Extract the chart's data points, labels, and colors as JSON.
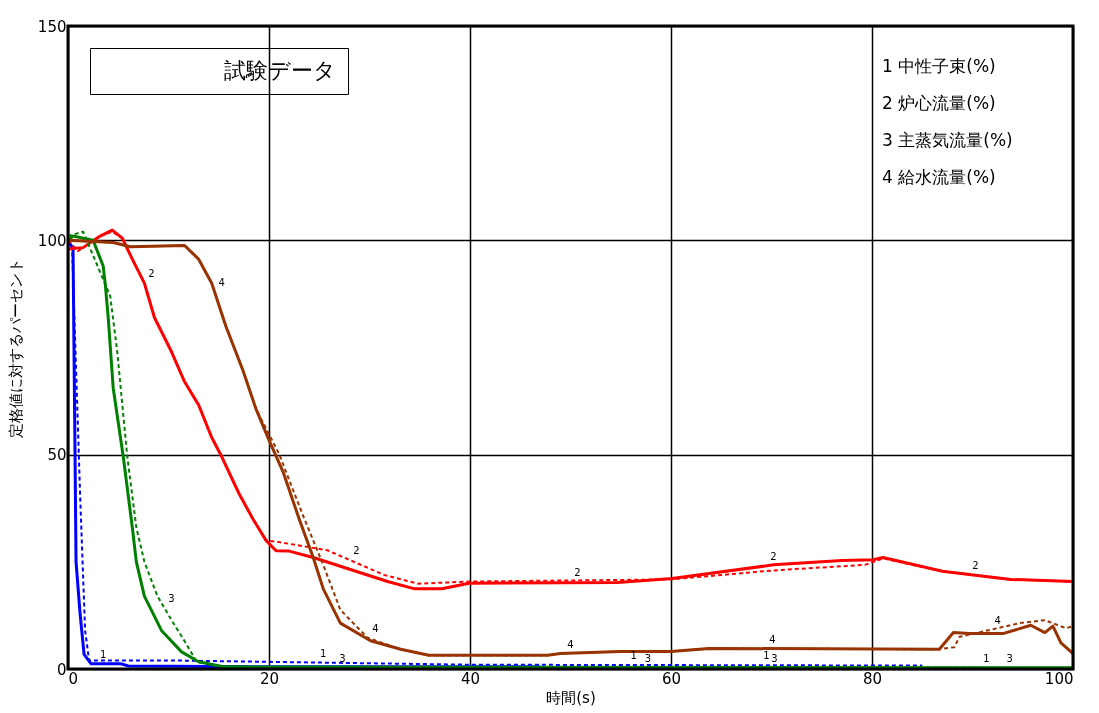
{
  "chart_data": {
    "type": "line",
    "xlabel": "時間(s)",
    "ylabel": "定格値に対するパーセント",
    "xlim": [
      0,
      100
    ],
    "xticks": [
      0,
      20,
      40,
      60,
      80,
      100
    ],
    "ylim": [
      0,
      150
    ],
    "yticks": [
      0,
      50,
      100,
      150
    ],
    "grid": true,
    "series": [
      {
        "color": "#0000ff",
        "line_style": "solid",
        "x": [
          0,
          0.5,
          0.7,
          0.8,
          1.2,
          1.6,
          2.3,
          5.3,
          6,
          20,
          47
        ],
        "values": [
          100,
          98,
          50,
          25,
          13,
          3.4,
          1.2,
          1.2,
          0.7,
          0.5,
          0.5
        ]
      },
      {
        "color": "#0000ff",
        "line_style": "dashed",
        "x": [
          0,
          0.4,
          1.2,
          1.7,
          2.1,
          10,
          40,
          85
        ],
        "values": [
          100,
          99,
          41,
          9,
          2,
          2,
          1,
          0.8
        ]
      },
      {
        "color": "#ff0000",
        "line_style": "solid",
        "x": [
          0,
          1.5,
          3.2,
          4.4,
          5.4,
          6.4,
          7.6,
          8.6,
          10.3,
          11.6,
          13,
          14.3,
          15.3,
          17,
          18.4,
          19.7,
          20.7,
          22,
          24.4,
          31.8,
          34.5,
          37.2,
          39.9,
          54.7,
          60.1,
          70.2,
          77,
          80.1,
          81.1,
          87,
          93.8,
          100
        ],
        "values": [
          98,
          98.3,
          101,
          102.4,
          100.5,
          95.6,
          90,
          82,
          74,
          67,
          61.6,
          54,
          49.5,
          41,
          35,
          30,
          27.6,
          27.5,
          26,
          20.4,
          18.7,
          18.7,
          20,
          20.2,
          21.1,
          24.3,
          25.3,
          25.5,
          26,
          22.8,
          20.9,
          20.4
        ]
      },
      {
        "color": "#ff0000",
        "line_style": "dashed",
        "x": [
          0,
          1,
          3.2,
          4.4,
          5.4,
          6.4,
          7.6,
          8.6,
          10.3,
          11.6,
          13,
          14.3,
          15.3,
          17,
          18.4,
          19.7,
          21,
          25.8,
          31.5,
          34.8,
          39.9,
          60,
          70.2,
          79.3,
          81.1,
          87,
          93.8,
          100
        ],
        "values": [
          100,
          97.5,
          101,
          102,
          100.5,
          95.6,
          90,
          82,
          74,
          67,
          61.6,
          54,
          49.5,
          41,
          35,
          30,
          29.6,
          27.7,
          21.9,
          19.9,
          20.4,
          20.9,
          23,
          24.3,
          25.8,
          22.8,
          20.9,
          20.4
        ]
      },
      {
        "color": "#008000",
        "line_style": "solid",
        "x": [
          0,
          0.5,
          2.5,
          3.5,
          3.7,
          4,
          4.5,
          5.5,
          6.4,
          6.8,
          7.6,
          9.3,
          11.3,
          13,
          15.6,
          100
        ],
        "values": [
          100,
          101,
          100,
          94,
          90,
          82,
          65.5,
          49.5,
          33,
          25,
          17,
          9,
          4,
          1.7,
          0.5,
          0.3
        ]
      },
      {
        "color": "#008000",
        "line_style": "dashed",
        "x": [
          0,
          1.5,
          4.2,
          4.9,
          5.9,
          6.8,
          7.6,
          8.9,
          10.3,
          11.6,
          12.8,
          15,
          100
        ],
        "values": [
          101,
          102,
          87,
          74,
          49.5,
          33,
          25,
          17,
          11.4,
          6.5,
          1.7,
          0.5,
          0.3
        ]
      },
      {
        "color": "#993300",
        "line_style": "solid",
        "x": [
          0,
          4.5,
          6.2,
          11.6,
          13,
          14.3,
          15.7,
          17.4,
          18.7,
          20,
          21.4,
          23,
          24.4,
          25.4,
          27.1,
          30.1,
          33.1,
          35.9,
          47.7,
          49,
          55,
          60,
          63.8,
          86.7,
          88.1,
          89.7,
          93.1,
          95.8,
          97.2,
          98,
          98.8,
          100
        ],
        "values": [
          100,
          99.5,
          98.5,
          98.8,
          95.6,
          90,
          80,
          69.7,
          60.7,
          53.4,
          46,
          35,
          26,
          18.7,
          10.7,
          6.6,
          4.6,
          3.2,
          3.2,
          3.6,
          4.1,
          4.1,
          4.8,
          4.6,
          8.5,
          8.3,
          8.3,
          10.2,
          8.5,
          10,
          6.1,
          3.6
        ]
      },
      {
        "color": "#993300",
        "line_style": "dashed",
        "x": [
          0,
          4.5,
          6.2,
          11.6,
          13,
          14.3,
          15.7,
          17.4,
          18.7,
          21,
          23.4,
          25.4,
          27.1,
          29.8,
          33.1,
          35.9,
          47.7,
          49,
          55,
          60,
          63.8,
          86.7,
          88.2,
          88.7,
          94.7,
          97.2,
          99.3,
          100
        ],
        "values": [
          100,
          99.5,
          98.5,
          98.8,
          95.6,
          90,
          80,
          69.7,
          60.7,
          50.2,
          35.7,
          24.3,
          13.8,
          7.3,
          4.6,
          3.2,
          3.2,
          3.6,
          4.1,
          4.1,
          4.8,
          4.6,
          5.1,
          7.5,
          10.7,
          11.4,
          9.5,
          10
        ]
      }
    ],
    "annotations": [
      "試験データ",
      "1 中性子束(%)",
      "2 炉心流量(%)",
      "3 主蒸気流量(%)",
      "4 給水流量(%)",
      {
        "text": "1",
        "x": 2.8,
        "y": 1.2
      },
      {
        "text": "2",
        "x": 7.6,
        "y": 90
      },
      {
        "text": "3",
        "x": 9.6,
        "y": 14.2
      },
      {
        "text": "4",
        "x": 14.6,
        "y": 87.9
      },
      {
        "text": "2",
        "x": 28,
        "y": 25.5
      },
      {
        "text": "4",
        "x": 29.9,
        "y": 7.2
      },
      {
        "text": "1",
        "x": 24.7,
        "y": 1.5
      },
      {
        "text": "3",
        "x": 26.6,
        "y": 0.3
      },
      {
        "text": "2",
        "x": 50,
        "y": 20.2
      },
      {
        "text": "4",
        "x": 49.3,
        "y": 3.6
      },
      {
        "text": "1",
        "x": 55.6,
        "y": 0.9
      },
      {
        "text": "3",
        "x": 57,
        "y": 0.3
      },
      {
        "text": "2",
        "x": 69.5,
        "y": 24.1
      },
      {
        "text": "4",
        "x": 69.4,
        "y": 4.7
      },
      {
        "text": "1",
        "x": 68.8,
        "y": 0.9
      },
      {
        "text": "3",
        "x": 69.6,
        "y": 0.3
      },
      {
        "text": "2",
        "x": 89.6,
        "y": 22
      },
      {
        "text": "4",
        "x": 91.8,
        "y": 9.2
      },
      {
        "text": "1",
        "x": 90.7,
        "y": 0.3
      },
      {
        "text": "3",
        "x": 93,
        "y": 0.3
      }
    ]
  }
}
